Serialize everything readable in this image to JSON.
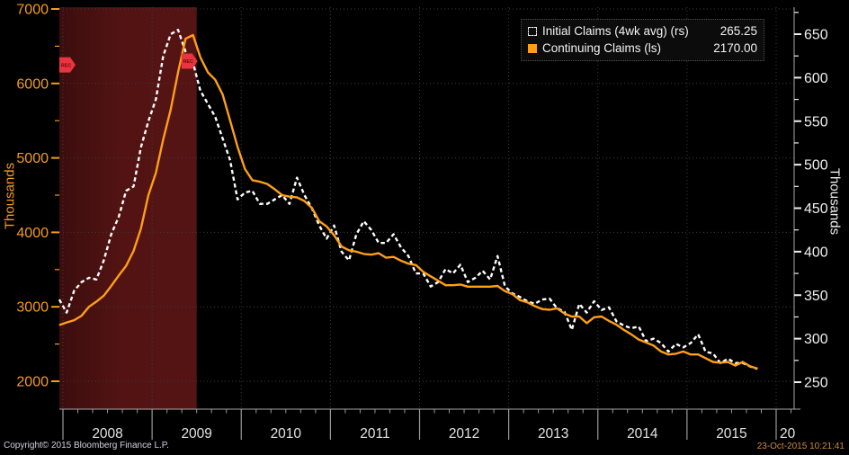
{
  "colors": {
    "background": "#000000",
    "orange_line": "#ff9f14",
    "white_line": "#ffffff",
    "left_axis_text": "#f59d18",
    "right_axis_text": "#f0f0f0",
    "year_text": "#e2e2e2",
    "grid": "#3e3e3e",
    "axis_line": "#a8a8a8",
    "tick": "#9a9a9a",
    "band_left": "#3c0d0d",
    "band_mid": "#531313",
    "band_right": "#551414",
    "marker_red": "#e8353f",
    "marker_text": "#70090e"
  },
  "legend": {
    "items": [
      {
        "label": "Initial Claims (4wk avg) (rs)",
        "value": "265.25",
        "marker": "dashed-white-square"
      },
      {
        "label": "Continuing Claims (ls)",
        "value": "2170.00",
        "marker": "solid-orange-square"
      }
    ]
  },
  "left_axis": {
    "title": "Thousands",
    "ticks": [
      7000,
      6000,
      5000,
      4000,
      3000,
      2000
    ],
    "minor_step": 500,
    "range": [
      2000,
      7000
    ]
  },
  "right_axis": {
    "title": "Thousands",
    "ticks": [
      650,
      600,
      550,
      500,
      450,
      400,
      350,
      300,
      250
    ],
    "minor_step": 25,
    "range": [
      250,
      650
    ]
  },
  "x_axis": {
    "years": [
      2008,
      2009,
      2010,
      2011,
      2012,
      2013,
      2014,
      2015
    ],
    "partial_next_year_label": "20"
  },
  "footer": {
    "copyright": "Copyright© 2015 Bloomberg Finance L.P.",
    "timestamp": "23-Oct-2015 10:21:41"
  },
  "annotations": {
    "recession_band": {
      "start": "2007-12",
      "end": "2009-06"
    },
    "markers": [
      {
        "label": "REC",
        "time": "2007-12",
        "level": 6250,
        "attach": "start"
      },
      {
        "label": "REC",
        "time": "2009-06",
        "level": 6300,
        "attach": "end"
      }
    ]
  },
  "chart_data": {
    "type": "line",
    "title": "",
    "x_start": "2007-12",
    "frequency": "monthly",
    "grid": "dotted",
    "legend_position": "top-right",
    "left_axis_range": [
      2000,
      7000
    ],
    "right_axis_range": [
      250,
      650
    ],
    "series": [
      {
        "name": "Initial Claims (4wk avg)",
        "axis": "right",
        "unit": "thousands",
        "color": "#ffffff",
        "style": "dashed",
        "last_value": 265.25,
        "values": [
          345,
          330,
          355,
          365,
          370,
          368,
          390,
          420,
          440,
          470,
          475,
          520,
          550,
          575,
          625,
          650,
          655,
          630,
          617,
          585,
          570,
          555,
          530,
          505,
          460,
          468,
          470,
          455,
          455,
          460,
          465,
          455,
          485,
          465,
          450,
          430,
          415,
          430,
          400,
          390,
          420,
          435,
          425,
          410,
          410,
          420,
          405,
          395,
          375,
          375,
          360,
          365,
          380,
          375,
          385,
          365,
          370,
          378,
          368,
          395,
          360,
          352,
          348,
          343,
          340,
          345,
          346,
          335,
          331,
          310,
          340,
          330,
          343,
          333,
          336,
          320,
          315,
          312,
          314,
          297,
          300,
          295,
          285,
          294,
          290,
          295,
          305,
          285,
          283,
          272,
          277,
          272,
          272,
          268,
          265.25
        ]
      },
      {
        "name": "Continuing Claims",
        "axis": "left",
        "unit": "thousands",
        "color": "#ff9f14",
        "style": "solid",
        "last_value": 2170.0,
        "values": [
          2755,
          2790,
          2820,
          2880,
          3000,
          3070,
          3150,
          3280,
          3420,
          3550,
          3750,
          4050,
          4500,
          4800,
          5250,
          5650,
          6150,
          6600,
          6650,
          6350,
          6150,
          6050,
          5850,
          5500,
          5150,
          4850,
          4700,
          4680,
          4650,
          4580,
          4500,
          4480,
          4470,
          4420,
          4330,
          4150,
          4080,
          3960,
          3810,
          3760,
          3740,
          3710,
          3700,
          3720,
          3660,
          3670,
          3620,
          3580,
          3560,
          3470,
          3410,
          3350,
          3290,
          3290,
          3300,
          3270,
          3270,
          3270,
          3270,
          3280,
          3210,
          3170,
          3090,
          3060,
          3010,
          2970,
          2960,
          2980,
          2910,
          2870,
          2870,
          2780,
          2860,
          2870,
          2810,
          2760,
          2690,
          2630,
          2560,
          2520,
          2480,
          2400,
          2360,
          2370,
          2400,
          2360,
          2360,
          2310,
          2260,
          2250,
          2260,
          2210,
          2260,
          2200,
          2170
        ]
      }
    ]
  }
}
